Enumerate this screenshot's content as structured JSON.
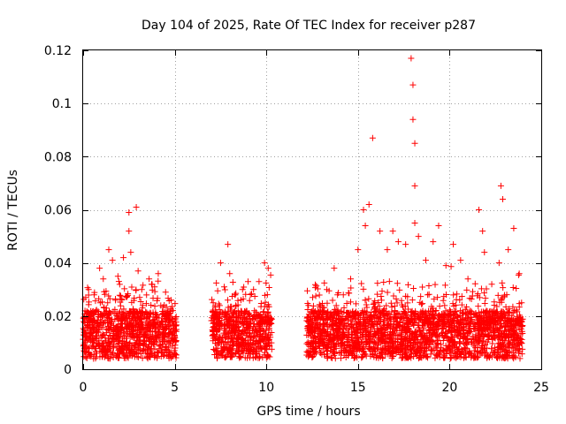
{
  "chart_data": {
    "type": "scatter",
    "title": "Day 104 of 2025, Rate Of TEC Index for receiver p287",
    "xlabel": "GPS time / hours",
    "ylabel": "ROTI / TECUs",
    "xlim": [
      0,
      25
    ],
    "ylim": [
      0,
      0.12
    ],
    "xticks": [
      0,
      5,
      10,
      15,
      20,
      25
    ],
    "xtick_labels": [
      "0",
      "5",
      "10",
      "15",
      "20",
      "25"
    ],
    "yticks": [
      0,
      0.02,
      0.04,
      0.06,
      0.08,
      0.1,
      0.12
    ],
    "ytick_labels": [
      "0",
      "0.02",
      "0.04",
      "0.06",
      "0.08",
      "0.1",
      "0.12"
    ],
    "grid": true,
    "marker": "plus",
    "color": "#ff0000",
    "data_segments": [
      {
        "x_start": 0.0,
        "x_end": 5.1
      },
      {
        "x_start": 7.0,
        "x_end": 10.3
      },
      {
        "x_start": 12.2,
        "x_end": 24.0
      }
    ],
    "series": [
      {
        "x": [
          0.1,
          0.3,
          0.6,
          0.9,
          1.1,
          1.4,
          1.6,
          1.9,
          2.2,
          2.5,
          2.5,
          2.6,
          2.9,
          3.0,
          3.2,
          3.6,
          3.9,
          4.1,
          4.5,
          4.8,
          7.1,
          7.5,
          7.7,
          7.9,
          8.0,
          8.3,
          8.7,
          9.0,
          9.3,
          9.6,
          9.9,
          10.1,
          12.3,
          12.8,
          13.3,
          13.7,
          14.2,
          14.6,
          15.0,
          15.3,
          15.4,
          15.6,
          15.8,
          16.2,
          16.6,
          16.9,
          17.2,
          17.6,
          17.9,
          18.0,
          18.0,
          18.1,
          18.1,
          18.1,
          18.3,
          18.7,
          19.1,
          19.4,
          19.8,
          20.2,
          20.6,
          21.0,
          21.6,
          21.8,
          21.9,
          22.3,
          22.7,
          22.8,
          22.9,
          23.2,
          23.5,
          23.8
        ],
        "y": [
          0.022,
          0.03,
          0.028,
          0.038,
          0.034,
          0.045,
          0.041,
          0.035,
          0.042,
          0.059,
          0.052,
          0.044,
          0.061,
          0.037,
          0.03,
          0.034,
          0.031,
          0.036,
          0.029,
          0.026,
          0.025,
          0.04,
          0.031,
          0.047,
          0.036,
          0.028,
          0.03,
          0.033,
          0.03,
          0.033,
          0.04,
          0.038,
          0.024,
          0.022,
          0.03,
          0.038,
          0.028,
          0.034,
          0.045,
          0.06,
          0.054,
          0.062,
          0.087,
          0.052,
          0.045,
          0.052,
          0.048,
          0.047,
          0.117,
          0.107,
          0.094,
          0.085,
          0.069,
          0.055,
          0.05,
          0.041,
          0.048,
          0.054,
          0.039,
          0.047,
          0.041,
          0.034,
          0.06,
          0.052,
          0.044,
          0.032,
          0.04,
          0.069,
          0.064,
          0.045,
          0.053,
          0.036
        ]
      }
    ]
  }
}
